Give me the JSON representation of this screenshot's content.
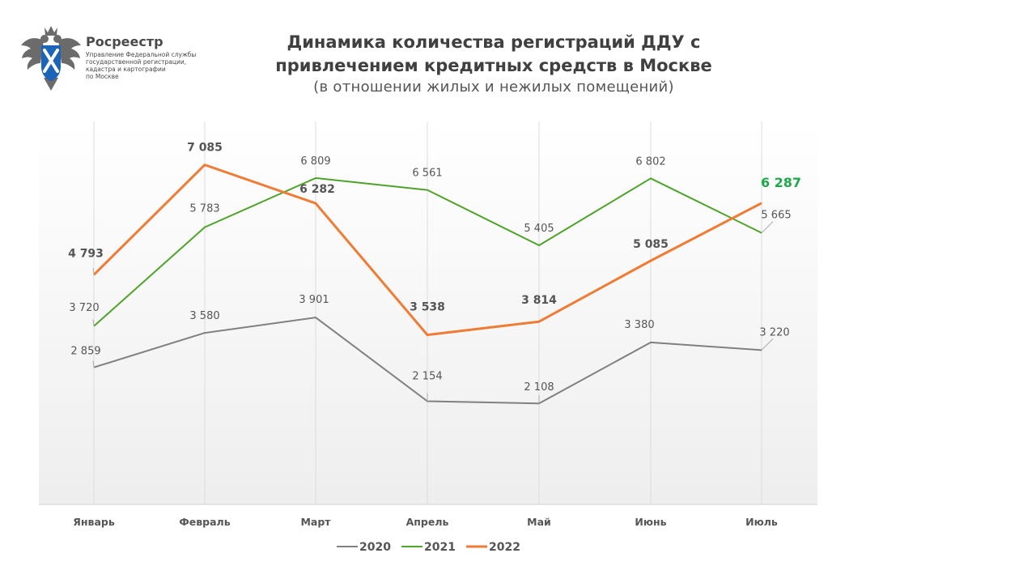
{
  "header": {
    "org_name": "Росреестр",
    "org_desc_lines": [
      "Управление Федеральной службы",
      "государственной регистрации,",
      "кадастра и картографии",
      "по Москве"
    ],
    "title_line1": "Динамика количества регистраций ДДУ с",
    "title_line2": "привлечением кредитных средств в Москве",
    "subtitle": "(в отношении  жилых  и нежилых  помещений)"
  },
  "chart_data": {
    "type": "line",
    "categories": [
      "Январь",
      "Февраль",
      "Март",
      "Апрель",
      "Май",
      "Июнь",
      "Июль"
    ],
    "ylim": [
      0,
      8000
    ],
    "grid": "vertical",
    "legend": "bottom",
    "series": [
      {
        "name": "2020",
        "color": "#808080",
        "values": [
          2859,
          3580,
          3901,
          2154,
          2108,
          3380,
          3220
        ],
        "labels": [
          "2 859",
          "3 580",
          "3 901",
          "2 154",
          "2 108",
          "3 380",
          "3 220"
        ]
      },
      {
        "name": "2021",
        "color": "#4ea32a",
        "values": [
          3720,
          5783,
          6809,
          6561,
          5405,
          6802,
          5665
        ],
        "labels": [
          "3 720",
          "5 783",
          "6 809",
          "6 561",
          "5 405",
          "6 802",
          "5 665"
        ]
      },
      {
        "name": "2022",
        "color": "#f07b34",
        "values": [
          4793,
          7085,
          6282,
          3538,
          3814,
          5085,
          6287
        ],
        "labels": [
          "4 793",
          "7 085",
          "6 282",
          "3 538",
          "3 814",
          "5 085",
          "6 287"
        ]
      }
    ]
  }
}
